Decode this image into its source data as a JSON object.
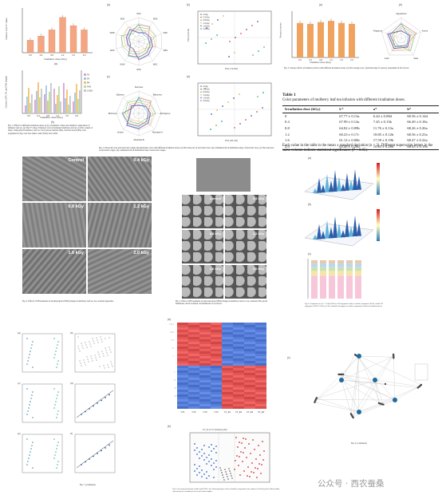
{
  "fig1": {
    "panel_a": "(a)",
    "panel_b": "(b)",
    "xlabel": "Irradiation dose (kGy)",
    "ylabel_a": "Infusion color b* value",
    "ylabel_b": "Content of FA, TA, and TAN (mg/g)",
    "ylabel_b2": "Content of FA and TA (%)",
    "doses": [
      "0.0",
      "0.4",
      "0.8",
      "1.2",
      "1.6",
      "2.0"
    ],
    "bars_a": [
      0.3,
      0.4,
      0.55,
      0.85,
      0.65,
      0.55
    ],
    "caption": "Fig. 1. Effects of different irradiation doses on (i) colorimetric values and chemical composition of mulberry leaf tea. (a) The b* value of infusion color in fermented mulberry leaf tea. (b) The content of major compounds in mulberry leaf tea. Total polysaccharides (PA), total flavonoids (FA), total polyphenols (TA), total free amino acids (TAN), and 1-DNJ.",
    "legend": [
      "TA",
      "FA",
      "PA",
      "TAN",
      "1-DNJ"
    ]
  },
  "fig_radar": {
    "panel_a": "(a)",
    "panel_b": "(b)",
    "panel_c": "(c)",
    "panel_d": "(d)",
    "radar_axes": [
      "W1C",
      "W5S",
      "W3C",
      "W6S",
      "W5C",
      "W1S",
      "W1W",
      "W2S",
      "W2W",
      "W3S"
    ],
    "taste_axes": [
      "Sourness",
      "Bitterness",
      "Astringency",
      "Aftertaste-A",
      "Aftertaste-B",
      "Umami",
      "Richness",
      "Saltiness"
    ],
    "pca_xlabel": "PC1 (72.9%)",
    "pca_ylabel": "PC2 (12.1%)",
    "pca2_xlabel": "PC1 (81.4%)",
    "legend": [
      "0 kGy",
      "0.4 kGy",
      "0.8 kGy",
      "1.2 kGy",
      "1.6 kGy",
      "2.0 kGy"
    ],
    "caption": "Fig. 2. Electronic nose and electronic tongue measurements of tea with different irradiation doses. (a) The radar plot of electronic nose. (b) 2-dimension PCA distribution map of electronic nose. (c) The radar plot of electronic tongue. (d) 2-dimension PCA distribution map of electronic tongue."
  },
  "fig3": {
    "panel_a": "(a)",
    "panel_b": "(b)",
    "ylabel": "Sensory scores",
    "xlabel": "Irradiation dose (kGy)",
    "bars": [
      0.8,
      0.78,
      0.82,
      0.85,
      0.8,
      0.78
    ],
    "radar_axes": [
      "Appearance",
      "Aroma",
      "Taste",
      "Color",
      "Fragrance"
    ],
    "caption": "Fig. 3. Sensory effects of mulberry leaf tea with different irradiation doses. (a) The average score. (b) Radar map for sensory assessment in five factors."
  },
  "table1": {
    "title": "Table 1",
    "subtitle": "Color parameters of mulberry leaf tea infusion with different irradiation doses.",
    "headers": [
      "Irradiation dose (kGy)",
      "L*",
      "a*",
      "b*"
    ],
    "rows": [
      [
        "0",
        "67.77 ± 0.13a",
        "6.44 ± 0.08d",
        "60.56 ± 0.14d"
      ],
      [
        "0.4",
        "67.99 ± 0.14a",
        "7.45 ± 0.13b",
        "66.49 ± 0.18a"
      ],
      [
        "0.8",
        "64.02 ± 0.09b",
        "11.76 ± 0.13a",
        "68.26 ± 0.26a"
      ],
      [
        "1.2",
        "60.23 ± 0.17c",
        "18.85 ± 0.12b",
        "68.56 ± 0.23a"
      ],
      [
        "1.6",
        "61.12 ± 0.06b",
        "17.59 ± 0.19b",
        "68.47 ± 0.22a"
      ],
      [
        "2.0",
        "63.48 ± 0.28b",
        "10.63 ± 0.28b",
        "68.45 ± 0.19a"
      ]
    ],
    "footnote": "Each value in the table is the mean ± standard deviation (n = 3). Different superscript letters in the same column indicate statistical significance (P < 0.05)."
  },
  "fig4": {
    "labels": [
      "Control",
      "0.4 kGy",
      "0.8 kGy",
      "1.2 kGy",
      "1.6 kGy",
      "2.0 kGy"
    ],
    "caption": "Fig. 4. Effects of EB treatment on morphological (SEM) changes in mulberry leaf tea. SA, stomatal apparatus."
  },
  "fig5": {
    "labels": [
      "Control",
      "0.4 kGy",
      "0.8 kGy",
      "1.2 kGy",
      "1.6 kGy",
      "2.0 kGy"
    ],
    "caption": "Fig. 5. Effect of EB treatment on microstructure (SEM) changes in mulberry leaf tea. SA, stomatal; PM, pectin membrane; all the stomatal cell membrane of tea leaves."
  },
  "fig6": {
    "panel_a": "(a)",
    "panel_b": "(b)",
    "panel_c": "(c)",
    "caption": "Fig. 6. Comparison of (a) 0 - 2.0 kGy EB dose 3D fingerprint results of volatile compounds. (b) The volatile 3D fingerprint of EB 0-2.0 kGy. (c) The cumulative histogram of volatile compounds of different irradiation doses.",
    "stack_colors": [
      "#f7c6d9",
      "#f4e6a8",
      "#c9e3b0",
      "#bcd6ef",
      "#e6c9a8"
    ]
  },
  "fig7": {
    "panels": [
      "(a)",
      "(b)",
      "(c)",
      "(d)",
      "(e)",
      "(f)"
    ],
    "caption": "Fig. 7. (continued)."
  },
  "fig8": {
    "panel_a": "(a)",
    "panel_b": "(b)",
    "samples": [
      "CT1",
      "CT2",
      "CT3",
      "CT4",
      "CT_E1",
      "CT_E2",
      "CT_E3",
      "CT_E4"
    ],
    "volcano_title": "CT_E vs CT (Volcano plot)",
    "caption": "Fig. 8. Screening and analysis of differential DEGs. (a) Clustering analysis of the metabolite compounds of the samples. (b) Volcano plot of differentially expressed genes of mulberry leaf tea and control samples."
  },
  "fig9": {
    "panel": "(c)",
    "caption": "Fig. 9. (continued)."
  },
  "watermark": "公众号 · 西农蚕桑"
}
